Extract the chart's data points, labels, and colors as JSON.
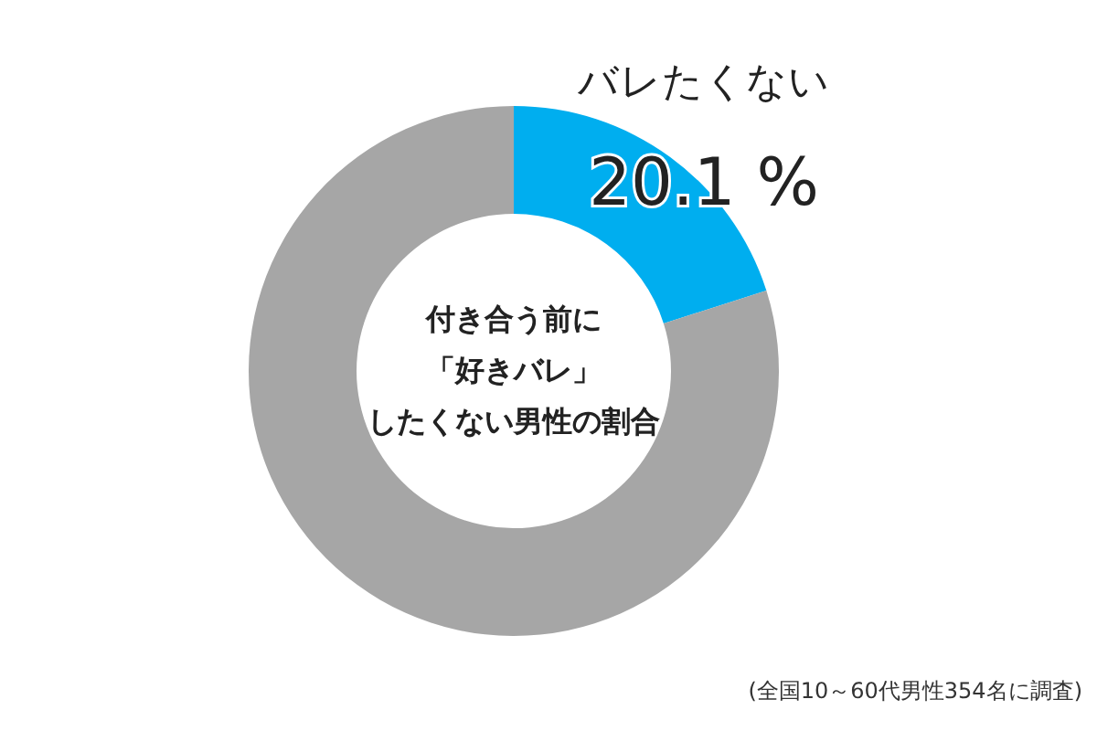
{
  "chart_data": {
    "type": "donut",
    "title": "付き合う前に「好きバレ」したくない男性の割合",
    "categories": [
      "バレたくない",
      null
    ],
    "values": [
      20.1,
      79.9
    ],
    "colors": [
      "#00aeef",
      "#a6a6a6"
    ],
    "value_labels": [
      "20.1 %",
      null
    ],
    "annotations": [
      "(全国10～60代男性354名に調査)"
    ]
  }
}
